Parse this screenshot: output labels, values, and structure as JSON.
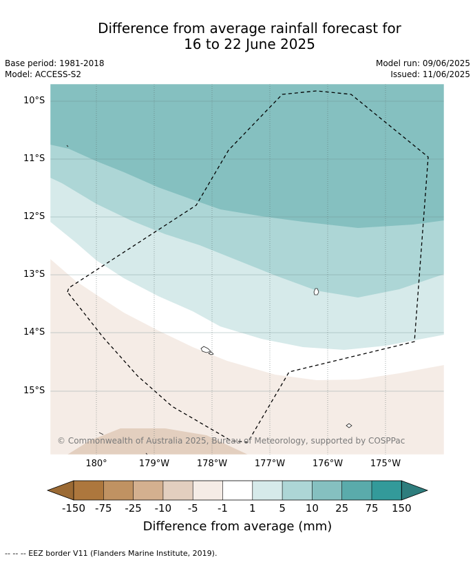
{
  "title_line1": "Difference from average rainfall forecast for",
  "title_line2": "16 to 22 June 2025",
  "base_period": "Base period: 1981-2018",
  "model": "Model: ACCESS-S2",
  "model_run": "Model run: 09/06/2025",
  "issued": "Issued: 11/06/2025",
  "map": {
    "lat_labels": [
      "10°S",
      "11°S",
      "12°S",
      "13°S",
      "14°S",
      "15°S"
    ],
    "lon_labels": [
      "180°",
      "179°W",
      "178°W",
      "177°W",
      "176°W",
      "175°W"
    ],
    "copyright": "© Commonwealth of Australia 2025, Bureau of Meteorology, supported by COSPPac",
    "colors": {
      "over_150": "#2e8a8a",
      "75_150": "#339a9a",
      "25_75": "#5aabab",
      "10_25": "#85c0c0",
      "5_10": "#add6d6",
      "1_5": "#d6eaea",
      "-1_1": "#ffffff",
      "-5_-1": "#f5ece6",
      "-10_-5": "#e3cfbf",
      "-25_-10": "#d4b08f",
      "-75_-25": "#c09262",
      "-150_-75": "#ad773d",
      "under_-150": "#9b6a34"
    }
  },
  "colorbar": {
    "ticks": [
      "-150",
      "-75",
      "-25",
      "-10",
      "-5",
      "-1",
      "1",
      "5",
      "10",
      "25",
      "75",
      "150"
    ],
    "title": "Difference from average (mm)"
  },
  "footnote": "--  --  -- EEZ border V11 (Flanders Marine Institute, 2019)."
}
